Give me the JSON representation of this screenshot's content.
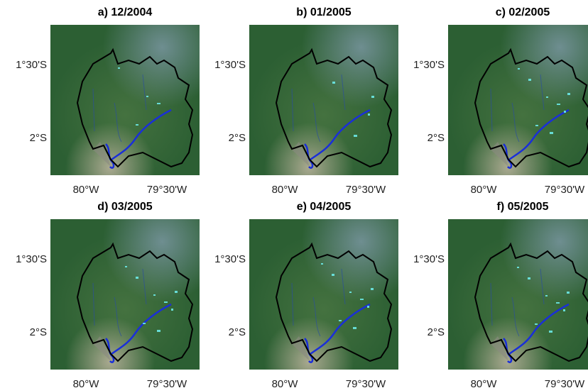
{
  "panels": [
    {
      "title": "a) 12/2004",
      "x_labels": [
        "80°W",
        "79°30'W"
      ],
      "y_labels": [
        "1°30'S",
        "2°S"
      ]
    },
    {
      "title": "b) 01/2005",
      "x_labels": [
        "80°W",
        "79°30'W"
      ],
      "y_labels": [
        "1°30'S",
        "2°S"
      ]
    },
    {
      "title": "c) 02/2005",
      "x_labels": [
        "80°W",
        "79°30'W"
      ],
      "y_labels": [
        "1°30'S",
        "2°S"
      ]
    },
    {
      "title": "d) 03/2005",
      "x_labels": [
        "80°W",
        "79°30'W"
      ],
      "y_labels": [
        "1°30'S",
        "2°S"
      ]
    },
    {
      "title": "e) 04/2005",
      "x_labels": [
        "80°W",
        "79°30'W"
      ],
      "y_labels": [
        "1°30'S",
        "2°S"
      ]
    },
    {
      "title": "f) 05/2005",
      "x_labels": [
        "80°W",
        "79°30'W"
      ],
      "y_labels": [
        "1°30'S",
        "2°S"
      ]
    }
  ]
}
